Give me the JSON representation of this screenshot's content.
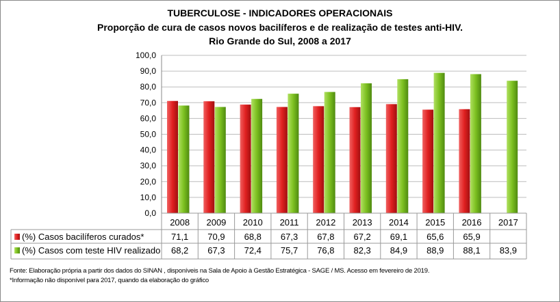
{
  "chart_data": {
    "type": "bar",
    "title": "TUBERCULOSE - INDICADORES OPERACIONAIS",
    "subtitle": [
      "Proporção de cura de casos novos bacilíferos e de realização de testes anti-HIV.",
      "Rio Grande do Sul, 2008 a 2017"
    ],
    "categories": [
      "2008",
      "2009",
      "2010",
      "2011",
      "2012",
      "2013",
      "2014",
      "2015",
      "2016",
      "2017"
    ],
    "ylim": [
      0,
      100
    ],
    "yticks": [
      "0,0",
      "10,0",
      "20,0",
      "30,0",
      "40,0",
      "50,0",
      "60,0",
      "70,0",
      "80,0",
      "90,0",
      "100,0"
    ],
    "grid": true,
    "legend": "data-table",
    "series": [
      {
        "name": "(%) Casos bacilíferos curados*",
        "color": "#e02020",
        "values": [
          71.1,
          70.9,
          68.8,
          67.3,
          67.8,
          67.2,
          69.1,
          65.6,
          65.9,
          null
        ],
        "labels": [
          "71,1",
          "70,9",
          "68,8",
          "67,3",
          "67,8",
          "67,2",
          "69,1",
          "65,6",
          "65,9",
          ""
        ]
      },
      {
        "name": "(%) Casos com teste HIV realizado",
        "color": "#7cc020",
        "values": [
          68.2,
          67.3,
          72.4,
          75.7,
          76.8,
          82.3,
          84.9,
          88.9,
          88.1,
          83.9
        ],
        "labels": [
          "68,2",
          "67,3",
          "72,4",
          "75,7",
          "76,8",
          "82,3",
          "84,9",
          "88,9",
          "88,1",
          "83,9"
        ]
      }
    ]
  },
  "notes": [
    "Fonte: Elaboração própria a partir dos dados do SINAN , disponíveis na Sala de Apoio à Gestão Estratégica - SAGE / MS. Acesso em fevereiro de 2019.",
    "*Informação não disponível para 2017, quando da elaboração do gráfico"
  ]
}
